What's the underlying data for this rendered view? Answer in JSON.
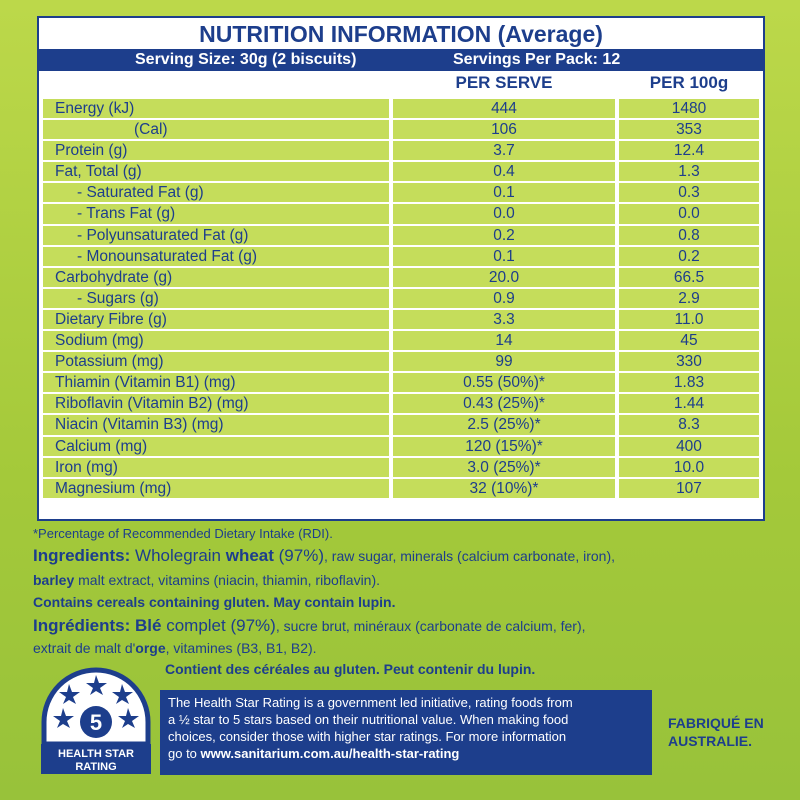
{
  "nip": {
    "title": "NUTRITION INFORMATION (Average)",
    "serving_size": "Serving Size: 30g (2 biscuits)",
    "servings_per_pack": "Servings Per Pack: 12",
    "col_per_serve": "PER SERVE",
    "col_per_100g": "PER 100g",
    "rows": [
      {
        "label": "Energy  (kJ)",
        "per_serve": "444",
        "per_100g": "1480"
      },
      {
        "label": "(Cal)",
        "per_serve": "106",
        "per_100g": "353"
      },
      {
        "label": "Protein (g)",
        "per_serve": "3.7",
        "per_100g": "12.4"
      },
      {
        "label": "Fat, Total (g)",
        "per_serve": "0.4",
        "per_100g": "1.3"
      },
      {
        "label": "- Saturated Fat (g)",
        "per_serve": "0.1",
        "per_100g": "0.3"
      },
      {
        "label": "- Trans Fat (g)",
        "per_serve": "0.0",
        "per_100g": "0.0"
      },
      {
        "label": "- Polyunsaturated Fat (g)",
        "per_serve": "0.2",
        "per_100g": "0.8"
      },
      {
        "label": "- Monounsaturated Fat (g)",
        "per_serve": "0.1",
        "per_100g": "0.2"
      },
      {
        "label": "Carbohydrate (g)",
        "per_serve": "20.0",
        "per_100g": "66.5"
      },
      {
        "label": "- Sugars (g)",
        "per_serve": "0.9",
        "per_100g": "2.9"
      },
      {
        "label": "Dietary Fibre (g)",
        "per_serve": "3.3",
        "per_100g": "11.0"
      },
      {
        "label": "Sodium (mg)",
        "per_serve": "14",
        "per_100g": "45"
      },
      {
        "label": "Potassium (mg)",
        "per_serve": "99",
        "per_100g": "330"
      },
      {
        "label": "Thiamin (Vitamin B1) (mg)",
        "per_serve": "0.55 (50%)*",
        "per_100g": "1.83"
      },
      {
        "label": "Riboflavin (Vitamin B2) (mg)",
        "per_serve": "0.43 (25%)*",
        "per_100g": "1.44"
      },
      {
        "label": "Niacin (Vitamin B3) (mg)",
        "per_serve": "2.5 (25%)*",
        "per_100g": "8.3"
      },
      {
        "label": "Calcium (mg)",
        "per_serve": "120 (15%)*",
        "per_100g": "400"
      },
      {
        "label": "Iron (mg)",
        "per_serve": "3.0 (25%)*",
        "per_100g": "10.0"
      },
      {
        "label": "Magnesium (mg)",
        "per_serve": "32 (10%)*",
        "per_100g": "107"
      }
    ]
  },
  "rdi_note": "*Percentage of Recommended Dietary Intake (RDI).",
  "ingredients_en": {
    "heading": "Ingredients:",
    "part1": " Wholegrain ",
    "wheat": "wheat",
    "part2": " (97%)",
    "part3": ", raw sugar, minerals (calcium carbonate, iron),",
    "barley": "barley",
    "part4": " malt extract, vitamins (niacin, thiamin, riboflavin).",
    "allergen": "Contains cereals containing gluten. May contain lupin."
  },
  "ingredients_fr": {
    "heading": "Ingrédients:",
    "ble": " Blé",
    "part1": " complet (97%)",
    "part2": ", sucre brut, minéraux (carbonate de calcium, fer),",
    "part3": "extrait de malt d'",
    "orge": "orge",
    "part4": ", vitamines (B3, B1, B2).",
    "allergen": "Contient des céréales au gluten. Peut contenir du lupin."
  },
  "health_star": {
    "rating": "5",
    "label_line1": "HEALTH STAR",
    "label_line2": "RATING",
    "text_line1": "The Health Star Rating is a government led initiative, rating foods from",
    "text_line2": "a ½ star to 5 stars based on their nutritional value. When making food",
    "text_line3": "choices, consider those with higher star ratings. For more information",
    "text_line4_prefix": "go to ",
    "text_line4_url": "www.sanitarium.com.au/health-star-rating"
  },
  "made_in": {
    "line1": "FABRIQUÉ EN",
    "line2": "AUSTRALIE."
  },
  "colors": {
    "navy": "#1d3e8c",
    "green": "#a9cc35",
    "cell": "#c5dd5b"
  }
}
